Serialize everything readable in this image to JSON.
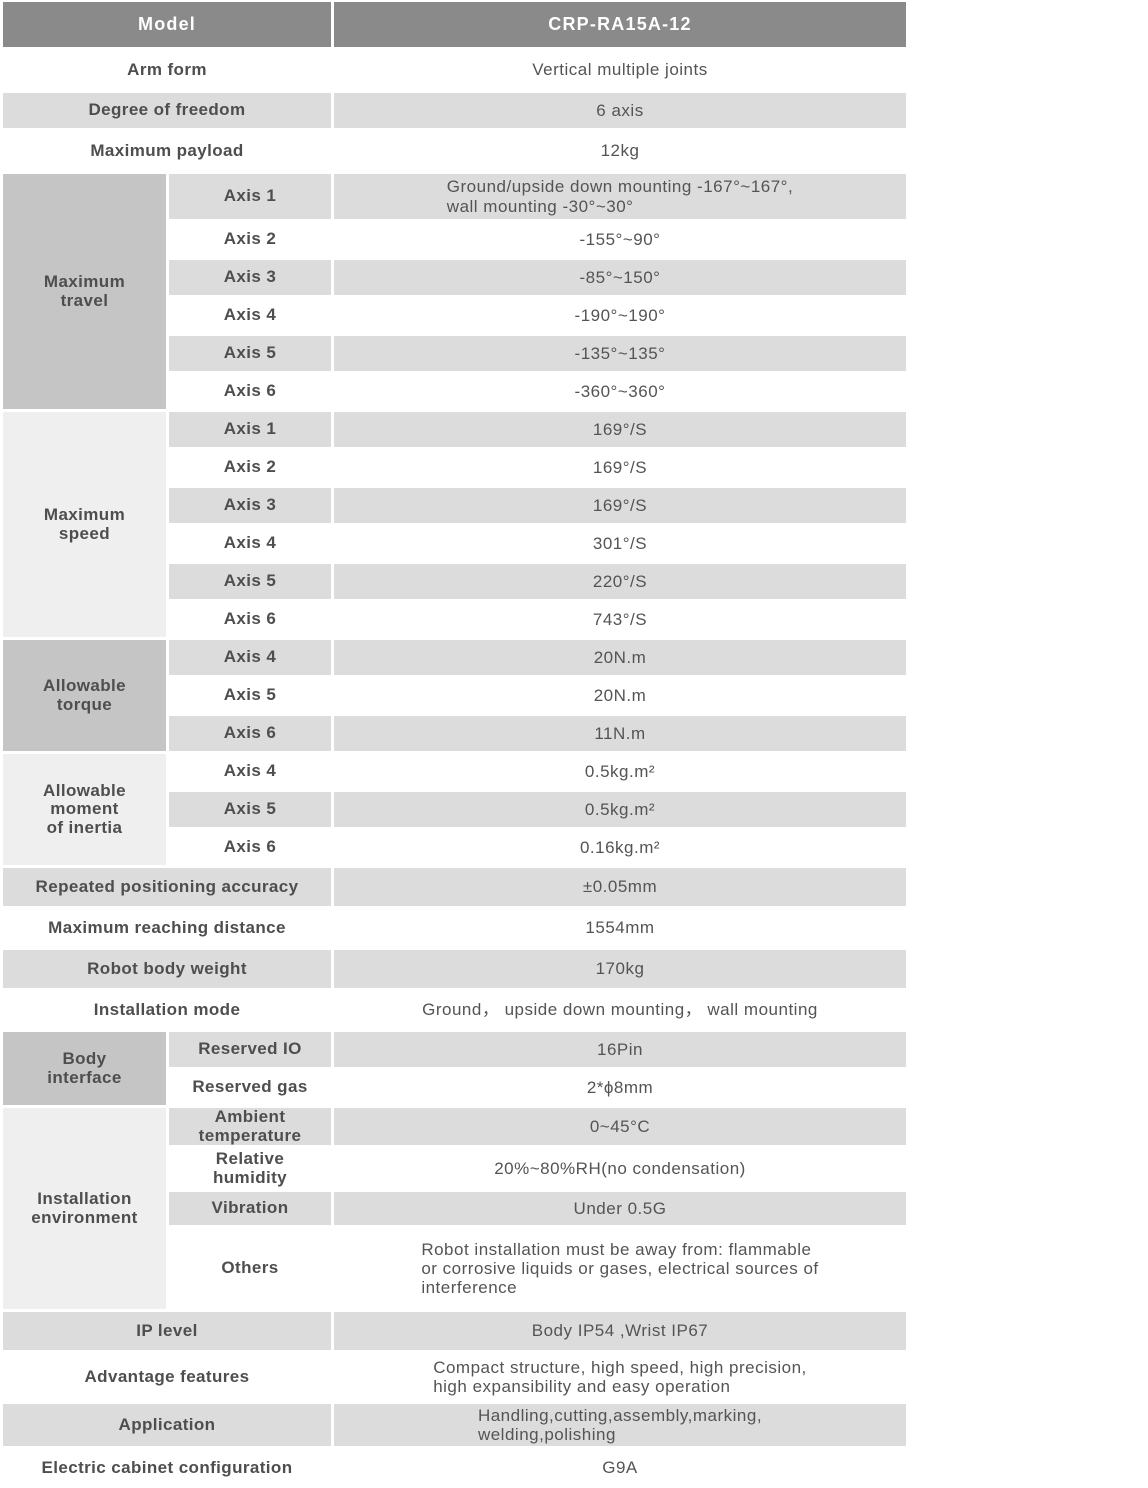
{
  "colors": {
    "header_bg": "#8a8a8a",
    "row_stripe": "#dcdcdc",
    "group_cell_dark": "#c5c5c5",
    "group_cell_light": "#f0efef",
    "text": "#4e4e4e"
  },
  "header": {
    "label": "Model",
    "value": "CRP-RA15A-12"
  },
  "rows": {
    "arm_form": {
      "label": "Arm form",
      "value": "Vertical multiple joints"
    },
    "degree_of_freedom": {
      "label": "Degree of freedom",
      "value": "6 axis"
    },
    "maximum_payload": {
      "label": "Maximum payload",
      "value": "12kg"
    },
    "repeated_positioning_accuracy": {
      "label": "Repeated positioning accuracy",
      "value": "±0.05mm"
    },
    "maximum_reaching_distance": {
      "label": "Maximum reaching distance",
      "value": "1554mm"
    },
    "robot_body_weight": {
      "label": "Robot body weight",
      "value": "170kg"
    },
    "installation_mode": {
      "label": "Installation mode",
      "value": "Ground， upside down mounting， wall mounting"
    },
    "ip_level": {
      "label": "IP level",
      "value": "Body IP54 ,Wrist IP67"
    },
    "advantage_features": {
      "label": "Advantage features",
      "value": "Compact structure, high speed, high precision,\nhigh expansibility and easy operation"
    },
    "application": {
      "label": "Application",
      "value": "Handling,cutting,assembly,marking,\nwelding,polishing"
    },
    "electric_cabinet_configuration": {
      "label": "Electric cabinet configuration",
      "value": "G9A"
    }
  },
  "sections": {
    "maximum_travel": {
      "label": "Maximum\ntravel",
      "rows": [
        {
          "label": "Axis 1",
          "value": "Ground/upside down mounting -167°~167°,\nwall mounting -30°~30°"
        },
        {
          "label": "Axis 2",
          "value": "-155°~90°"
        },
        {
          "label": "Axis 3",
          "value": "-85°~150°"
        },
        {
          "label": "Axis 4",
          "value": "-190°~190°"
        },
        {
          "label": "Axis 5",
          "value": "-135°~135°"
        },
        {
          "label": "Axis 6",
          "value": "-360°~360°"
        }
      ]
    },
    "maximum_speed": {
      "label": "Maximum\nspeed",
      "rows": [
        {
          "label": "Axis 1",
          "value": "169°/S"
        },
        {
          "label": "Axis 2",
          "value": "169°/S"
        },
        {
          "label": "Axis 3",
          "value": "169°/S"
        },
        {
          "label": "Axis 4",
          "value": "301°/S"
        },
        {
          "label": "Axis 5",
          "value": "220°/S"
        },
        {
          "label": "Axis 6",
          "value": "743°/S"
        }
      ]
    },
    "allowable_torque": {
      "label": "Allowable\ntorque",
      "rows": [
        {
          "label": "Axis 4",
          "value": "20N.m"
        },
        {
          "label": "Axis 5",
          "value": "20N.m"
        },
        {
          "label": "Axis 6",
          "value": "11N.m"
        }
      ]
    },
    "allowable_moment_of_inertia": {
      "label": "Allowable\nmoment\nof inertia",
      "rows": [
        {
          "label": "Axis 4",
          "value": "0.5kg.m²"
        },
        {
          "label": "Axis 5",
          "value": "0.5kg.m²"
        },
        {
          "label": "Axis 6",
          "value": "0.16kg.m²"
        }
      ]
    },
    "body_interface": {
      "label": "Body\ninterface",
      "rows": [
        {
          "label": "Reserved IO",
          "value": "16Pin"
        },
        {
          "label": "Reserved gas",
          "value": "2*ϕ8mm"
        }
      ]
    },
    "installation_environment": {
      "label": "Installation\nenvironment",
      "rows": [
        {
          "label": "Ambient\ntemperature",
          "value": "0~45°C"
        },
        {
          "label": "Relative\nhumidity",
          "value": "20%~80%RH(no condensation)"
        },
        {
          "label": "Vibration",
          "value": "Under 0.5G"
        },
        {
          "label": "Others",
          "value": "Robot installation must be away from: flammable\nor corrosive liquids or gases, electrical sources of\ninterference"
        }
      ]
    }
  }
}
